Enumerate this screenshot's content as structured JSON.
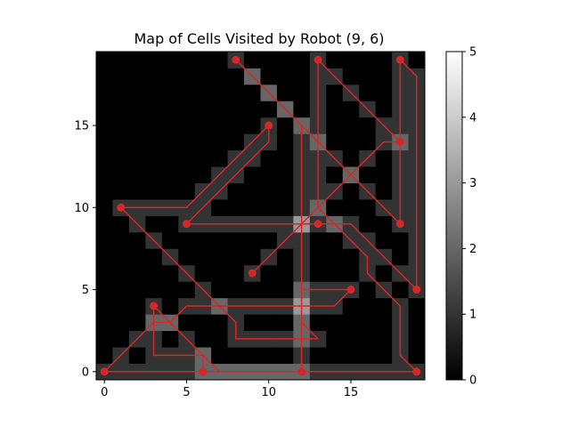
{
  "chart_data": {
    "type": "heatmap",
    "title": "Map of Cells Visited by Robot (9, 6)",
    "xlabel": "",
    "ylabel": "",
    "grid_size": [
      20,
      20
    ],
    "x_ticks": [
      0,
      5,
      10,
      15
    ],
    "y_ticks": [
      0,
      5,
      10,
      15
    ],
    "xlim": [
      -0.5,
      19.5
    ],
    "ylim": [
      -0.5,
      19.5
    ],
    "colormap": "gray",
    "colorbar": {
      "min": 0,
      "max": 5,
      "ticks": [
        0,
        1,
        2,
        3,
        4,
        5
      ]
    },
    "grid": false,
    "path_color": "#d62728",
    "path": [
      [
        9,
        6
      ],
      [
        10,
        7
      ],
      [
        11,
        8
      ],
      [
        12,
        9
      ],
      [
        13,
        10
      ],
      [
        14,
        11
      ],
      [
        15,
        12
      ],
      [
        16,
        13
      ],
      [
        17,
        14
      ],
      [
        18,
        14
      ],
      [
        18,
        15
      ],
      [
        18,
        16
      ],
      [
        18,
        17
      ],
      [
        18,
        18
      ],
      [
        18,
        19
      ],
      [
        19,
        18
      ],
      [
        19,
        17
      ],
      [
        19,
        16
      ],
      [
        19,
        15
      ],
      [
        19,
        14
      ],
      [
        19,
        13
      ],
      [
        19,
        12
      ],
      [
        19,
        11
      ],
      [
        19,
        10
      ],
      [
        19,
        9
      ],
      [
        19,
        8
      ],
      [
        19,
        7
      ],
      [
        19,
        6
      ],
      [
        19,
        5
      ],
      [
        18,
        6
      ],
      [
        17,
        7
      ],
      [
        16,
        8
      ],
      [
        15,
        9
      ],
      [
        14,
        9
      ],
      [
        13,
        9
      ],
      [
        12,
        9
      ],
      [
        11,
        9
      ],
      [
        10,
        9
      ],
      [
        9,
        9
      ],
      [
        8,
        9
      ],
      [
        7,
        9
      ],
      [
        6,
        9
      ],
      [
        5,
        9
      ],
      [
        6,
        10
      ],
      [
        7,
        11
      ],
      [
        8,
        12
      ],
      [
        9,
        13
      ],
      [
        10,
        14
      ],
      [
        10,
        15
      ],
      [
        9,
        14
      ],
      [
        8,
        13
      ],
      [
        7,
        12
      ],
      [
        6,
        11
      ],
      [
        5,
        10
      ],
      [
        4,
        10
      ],
      [
        3,
        10
      ],
      [
        2,
        10
      ],
      [
        1,
        10
      ],
      [
        2,
        9
      ],
      [
        3,
        8
      ],
      [
        4,
        7
      ],
      [
        5,
        6
      ],
      [
        6,
        5
      ],
      [
        7,
        4
      ],
      [
        8,
        3
      ],
      [
        8,
        2
      ],
      [
        9,
        2
      ],
      [
        10,
        2
      ],
      [
        11,
        2
      ],
      [
        12,
        2
      ],
      [
        13,
        2
      ],
      [
        12,
        3
      ],
      [
        12,
        4
      ],
      [
        12,
        5
      ],
      [
        13,
        5
      ],
      [
        14,
        5
      ],
      [
        15,
        5
      ],
      [
        14,
        4
      ],
      [
        13,
        4
      ],
      [
        12,
        4
      ],
      [
        11,
        4
      ],
      [
        10,
        4
      ],
      [
        9,
        4
      ],
      [
        8,
        4
      ],
      [
        7,
        4
      ],
      [
        6,
        4
      ],
      [
        5,
        4
      ],
      [
        4,
        3
      ],
      [
        3,
        3
      ],
      [
        3,
        2
      ],
      [
        3,
        1
      ],
      [
        4,
        1
      ],
      [
        5,
        1
      ],
      [
        6,
        1
      ],
      [
        7,
        0
      ],
      [
        8,
        0
      ],
      [
        9,
        0
      ],
      [
        10,
        0
      ],
      [
        11,
        0
      ],
      [
        12,
        0
      ],
      [
        13,
        0
      ],
      [
        14,
        0
      ],
      [
        15,
        0
      ],
      [
        16,
        0
      ],
      [
        17,
        0
      ],
      [
        18,
        0
      ],
      [
        19,
        0
      ],
      [
        18,
        1
      ],
      [
        18,
        2
      ],
      [
        18,
        3
      ],
      [
        18,
        4
      ],
      [
        17,
        5
      ],
      [
        16,
        6
      ],
      [
        16,
        7
      ],
      [
        15,
        8
      ],
      [
        14,
        9
      ],
      [
        13,
        10
      ],
      [
        13,
        11
      ],
      [
        13,
        12
      ],
      [
        13,
        13
      ],
      [
        13,
        14
      ],
      [
        13,
        15
      ],
      [
        13,
        16
      ],
      [
        13,
        17
      ],
      [
        13,
        18
      ],
      [
        13,
        19
      ],
      [
        14,
        18
      ],
      [
        15,
        17
      ],
      [
        16,
        16
      ],
      [
        17,
        15
      ],
      [
        18,
        14
      ],
      [
        18,
        13
      ],
      [
        18,
        12
      ],
      [
        18,
        11
      ],
      [
        18,
        10
      ],
      [
        18,
        9
      ],
      [
        17,
        10
      ],
      [
        16,
        11
      ],
      [
        15,
        12
      ],
      [
        14,
        13
      ],
      [
        13,
        14
      ],
      [
        12,
        15
      ],
      [
        11,
        16
      ],
      [
        10,
        17
      ],
      [
        9,
        18
      ],
      [
        8,
        19
      ],
      [
        9,
        18
      ],
      [
        10,
        17
      ],
      [
        11,
        16
      ],
      [
        12,
        15
      ],
      [
        12,
        14
      ],
      [
        12,
        13
      ],
      [
        12,
        12
      ],
      [
        12,
        11
      ],
      [
        12,
        10
      ],
      [
        12,
        9
      ],
      [
        12,
        8
      ],
      [
        12,
        7
      ],
      [
        12,
        6
      ],
      [
        12,
        5
      ],
      [
        12,
        4
      ],
      [
        12,
        3
      ],
      [
        12,
        2
      ],
      [
        12,
        1
      ],
      [
        12,
        0
      ],
      [
        11,
        0
      ],
      [
        10,
        0
      ],
      [
        9,
        0
      ],
      [
        8,
        0
      ],
      [
        7,
        0
      ],
      [
        6,
        0
      ],
      [
        5,
        0
      ],
      [
        4,
        0
      ],
      [
        3,
        0
      ],
      [
        2,
        0
      ],
      [
        1,
        0
      ],
      [
        0,
        0
      ],
      [
        1,
        1
      ],
      [
        2,
        2
      ],
      [
        3,
        3
      ],
      [
        3,
        4
      ],
      [
        4,
        3
      ],
      [
        5,
        2
      ],
      [
        6,
        1
      ],
      [
        6,
        0
      ]
    ],
    "markers": [
      [
        9,
        6
      ],
      [
        18,
        14
      ],
      [
        18,
        19
      ],
      [
        19,
        5
      ],
      [
        5,
        9
      ],
      [
        10,
        15
      ],
      [
        1,
        10
      ],
      [
        15,
        5
      ],
      [
        3,
        4
      ],
      [
        6,
        0
      ],
      [
        12,
        0
      ],
      [
        19,
        0
      ],
      [
        0,
        0
      ],
      [
        13,
        19
      ],
      [
        18,
        9
      ],
      [
        8,
        19
      ],
      [
        13,
        9
      ]
    ]
  }
}
